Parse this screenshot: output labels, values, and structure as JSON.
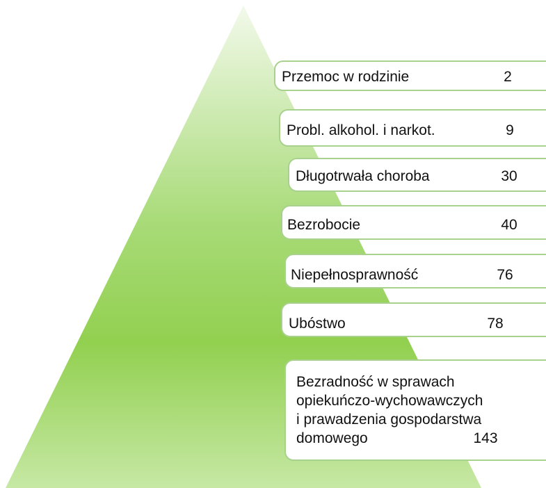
{
  "items": [
    {
      "lines": [
        "Przemoc w rodzinie"
      ],
      "value": 2
    },
    {
      "lines": [
        "Probl. alkohol. i narkot."
      ],
      "value": 9
    },
    {
      "lines": [
        "Długotrwała choroba"
      ],
      "value": 30
    },
    {
      "lines": [
        "Bezrobocie"
      ],
      "value": 40
    },
    {
      "lines": [
        "Niepełnosprawność"
      ],
      "value": 76
    },
    {
      "lines": [
        "Ubóstwo"
      ],
      "value": 78
    },
    {
      "lines": [
        "Bezradność w sprawach",
        "opiekuńczo-wychowawczych",
        "i prawadzenia gospodarstwa",
        "domowego"
      ],
      "value": 143
    }
  ]
}
